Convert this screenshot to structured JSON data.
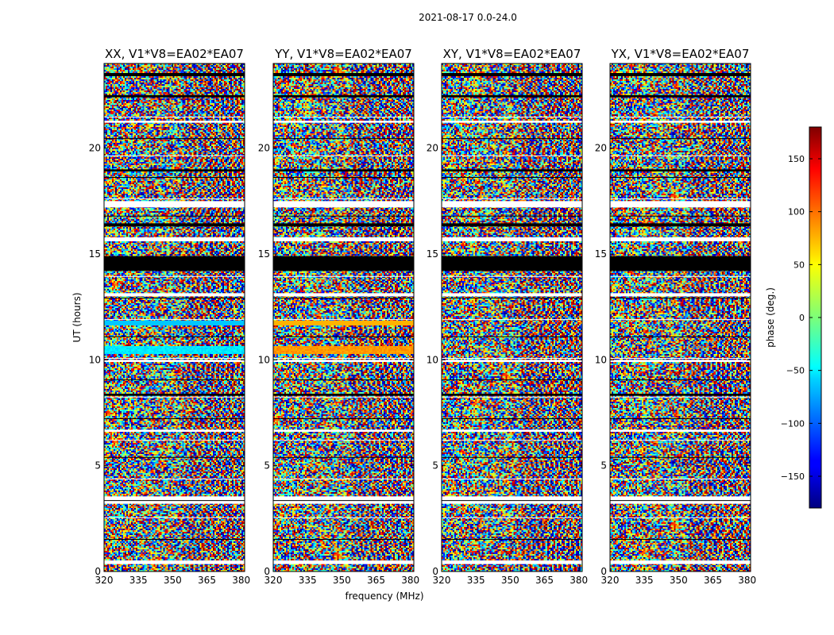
{
  "chart_data": {
    "type": "heatmap",
    "title": "2021-08-17 0.0-24.0",
    "xlabel": "frequency (MHz)",
    "ylabel": "UT (hours)",
    "x_ticks": [
      "320",
      "335",
      "350",
      "365",
      "380"
    ],
    "x_tick_values": [
      320,
      335,
      350,
      365,
      380
    ],
    "xlim": [
      320,
      381.5
    ],
    "y_ticks": [
      "0",
      "5",
      "10",
      "15",
      "20"
    ],
    "y_tick_values": [
      0,
      5,
      10,
      15,
      20
    ],
    "ylim": [
      0,
      24
    ],
    "panels": [
      {
        "title": "XX, V1*V8=EA02*EA07",
        "band_10_4": "cyan"
      },
      {
        "title": "YY, V1*V8=EA02*EA07",
        "band_10_4": "orange"
      },
      {
        "title": "XY, V1*V8=EA02*EA07",
        "band_10_4": "noise"
      },
      {
        "title": "YX, V1*V8=EA02*EA07",
        "band_10_4": "noise"
      }
    ],
    "flagged_black_ut": [
      [
        14.2,
        14.9
      ],
      [
        23.4,
        23.55
      ],
      [
        22.4,
        22.5
      ],
      [
        16.3,
        16.45
      ],
      [
        8.3,
        8.4
      ],
      [
        18.9,
        19.0
      ]
    ],
    "flagged_white_ut": [
      [
        0.35,
        0.5
      ],
      [
        3.2,
        3.55
      ],
      [
        17.2,
        17.5
      ],
      [
        15.6,
        15.75
      ],
      [
        13.0,
        13.15
      ],
      [
        21.2,
        21.3
      ],
      [
        6.6,
        6.7
      ],
      [
        9.9,
        10.0
      ]
    ],
    "colorbar": {
      "label": "phase (deg.)",
      "range": [
        -180,
        180
      ],
      "ticks": [
        "150",
        "100",
        "50",
        "0",
        "−50",
        "−100",
        "−150"
      ],
      "tick_values": [
        150,
        100,
        50,
        0,
        -50,
        -100,
        -150
      ],
      "colormap": "jet"
    }
  }
}
